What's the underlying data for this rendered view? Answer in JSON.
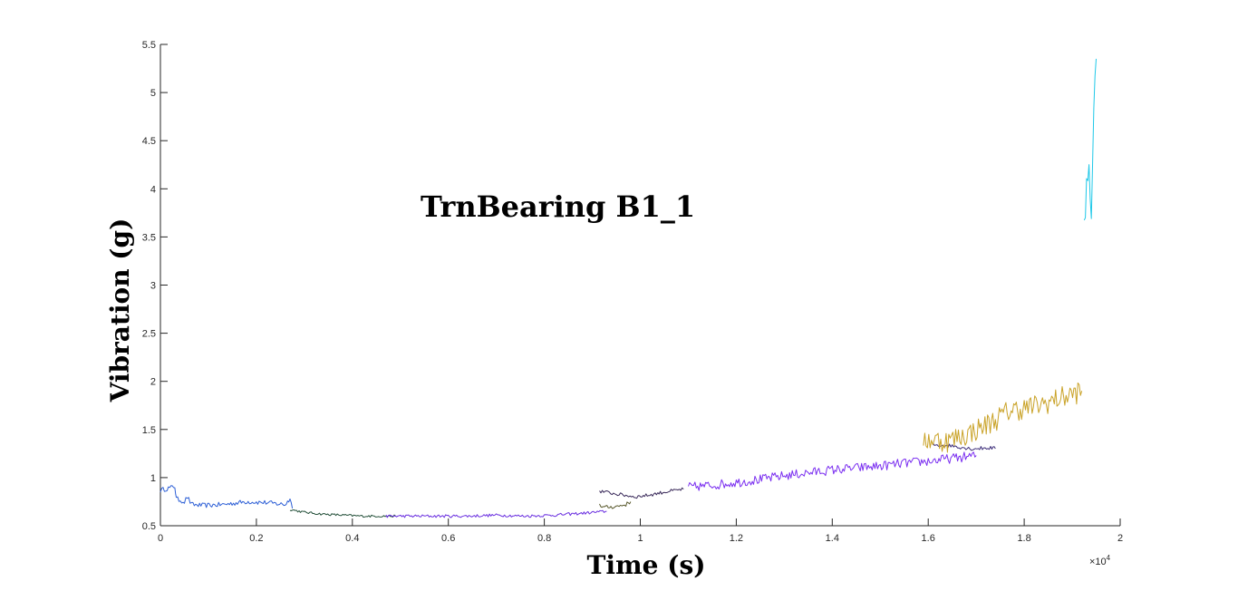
{
  "chart_data": {
    "type": "line",
    "title": "TrnBearing B1_1",
    "xlabel": "Time (s)",
    "ylabel": "Vibration (g)",
    "xlim": [
      0,
      20000
    ],
    "ylim": [
      0.5,
      5.5
    ],
    "x_exponent_label": "×10",
    "x_exponent_power": "4",
    "xticks": [
      {
        "value": 0,
        "label": "0"
      },
      {
        "value": 2000,
        "label": "0.2"
      },
      {
        "value": 4000,
        "label": "0.4"
      },
      {
        "value": 6000,
        "label": "0.6"
      },
      {
        "value": 8000,
        "label": "0.8"
      },
      {
        "value": 10000,
        "label": "1"
      },
      {
        "value": 12000,
        "label": "1.2"
      },
      {
        "value": 14000,
        "label": "1.4"
      },
      {
        "value": 16000,
        "label": "1.6"
      },
      {
        "value": 18000,
        "label": "1.8"
      },
      {
        "value": 20000,
        "label": "2"
      }
    ],
    "yticks": [
      {
        "value": 0.5,
        "label": "0.5"
      },
      {
        "value": 1,
        "label": "1"
      },
      {
        "value": 1.5,
        "label": "1.5"
      },
      {
        "value": 2,
        "label": "2"
      },
      {
        "value": 2.5,
        "label": "2.5"
      },
      {
        "value": 3,
        "label": "3"
      },
      {
        "value": 3.5,
        "label": "3.5"
      },
      {
        "value": 4,
        "label": "4"
      },
      {
        "value": 4.5,
        "label": "4.5"
      },
      {
        "value": 5,
        "label": "5"
      },
      {
        "value": 5.5,
        "label": "5.5"
      }
    ],
    "grid": false,
    "legend": "none",
    "series": [
      {
        "color": "#2d5fd6",
        "noise": 0.025,
        "x": [
          0,
          250,
          300,
          330,
          500,
          560,
          650,
          900,
          1300,
          1800,
          2200,
          2600,
          2700,
          2750
        ],
        "y": [
          0.87,
          0.9,
          0.91,
          0.78,
          0.75,
          0.8,
          0.72,
          0.71,
          0.72,
          0.75,
          0.74,
          0.72,
          0.78,
          0.68
        ]
      },
      {
        "color": "#24503a",
        "noise": 0.012,
        "x": [
          2700,
          3000,
          3400,
          3800,
          4200,
          4600,
          4900
        ],
        "y": [
          0.67,
          0.64,
          0.62,
          0.61,
          0.6,
          0.6,
          0.6
        ]
      },
      {
        "color": "#6a2fe0",
        "noise": 0.015,
        "x": [
          4700,
          5200,
          5800,
          6400,
          7000,
          7600,
          8200,
          8800,
          9300
        ],
        "y": [
          0.6,
          0.6,
          0.6,
          0.6,
          0.61,
          0.6,
          0.61,
          0.63,
          0.65
        ]
      },
      {
        "color": "#5a5a2e",
        "noise": 0.02,
        "x": [
          9150,
          9250,
          9500,
          9700,
          9800
        ],
        "y": [
          0.72,
          0.69,
          0.7,
          0.72,
          0.75
        ]
      },
      {
        "color": "#3a2a5a",
        "noise": 0.018,
        "x": [
          9150,
          9500,
          9900,
          10200,
          10500,
          10900
        ],
        "y": [
          0.86,
          0.83,
          0.8,
          0.82,
          0.85,
          0.88
        ]
      },
      {
        "color": "#7a2ef0",
        "noise": 0.05,
        "x": [
          11000,
          11500,
          12000,
          12500,
          13000,
          13500,
          14000,
          14500,
          15000,
          15500,
          16000,
          16500,
          17000
        ],
        "y": [
          0.9,
          0.92,
          0.95,
          0.98,
          1.02,
          1.05,
          1.08,
          1.1,
          1.12,
          1.15,
          1.17,
          1.2,
          1.23
        ]
      },
      {
        "color": "#3e2f7a",
        "noise": 0.02,
        "x": [
          16100,
          16500,
          16900,
          17300,
          17400
        ],
        "y": [
          1.34,
          1.33,
          1.3,
          1.31,
          1.3
        ]
      },
      {
        "color": "#c9a227",
        "noise": 0.12,
        "x": [
          15900,
          16400,
          16800,
          17100,
          17400,
          17700,
          18000,
          18300,
          18600,
          18900,
          19200
        ],
        "y": [
          1.4,
          1.38,
          1.45,
          1.52,
          1.6,
          1.7,
          1.72,
          1.75,
          1.8,
          1.85,
          1.9
        ]
      },
      {
        "color": "#1ec8e8",
        "noise": 0.25,
        "x": [
          19250,
          19300,
          19350,
          19400,
          19450,
          19500
        ],
        "y": [
          3.5,
          4.0,
          4.3,
          3.8,
          4.6,
          5.35
        ]
      }
    ]
  }
}
